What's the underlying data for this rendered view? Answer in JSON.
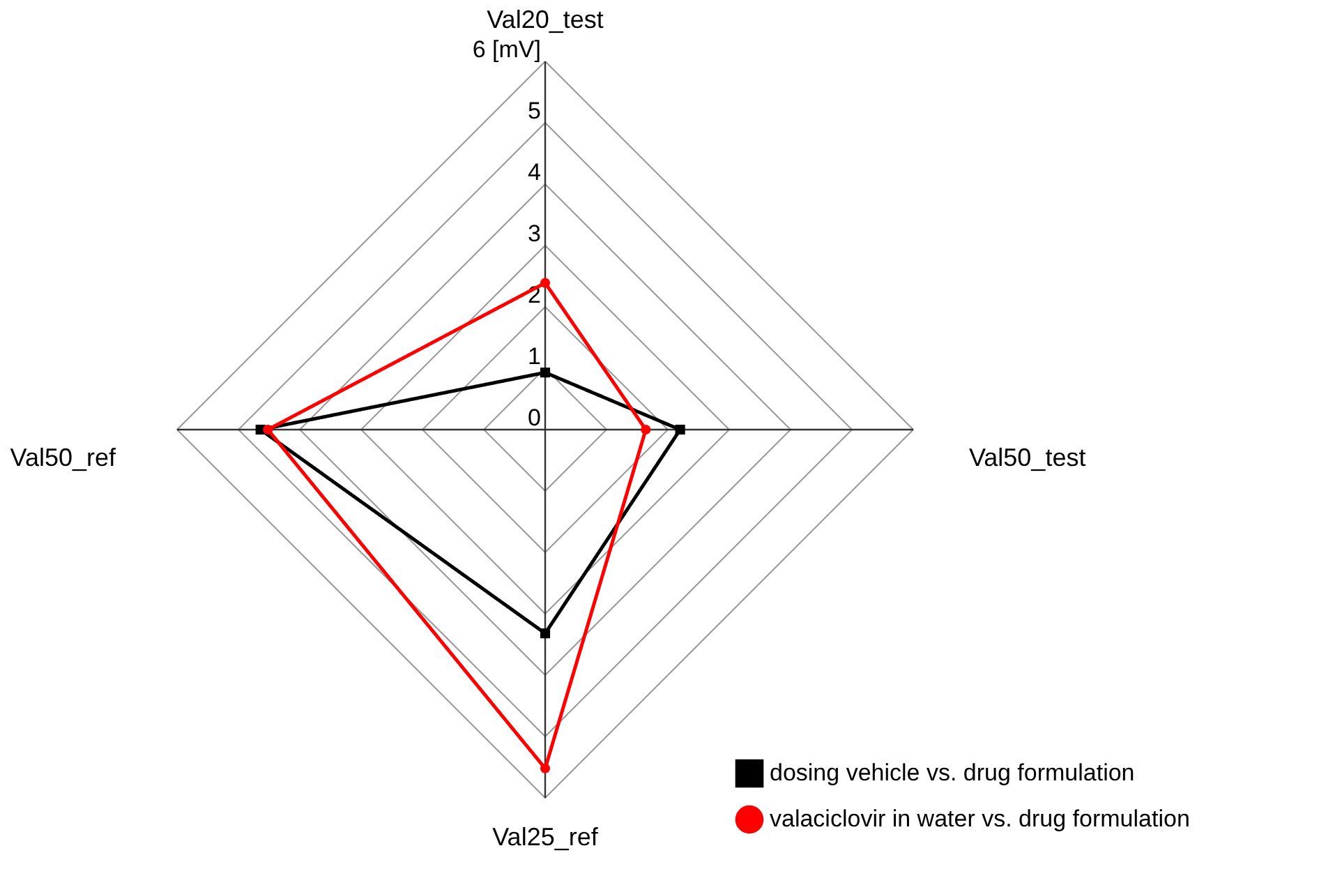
{
  "chart_data": {
    "type": "radar",
    "categories": [
      "Val20_test",
      "Val50_test",
      "Val25_ref",
      "Val50_ref"
    ],
    "ylim": [
      0,
      6
    ],
    "yticks": [
      0,
      1,
      2,
      3,
      4,
      5,
      {
        "value": 6,
        "label": "6 [mV]"
      }
    ],
    "grid": true,
    "legend": "bottom right",
    "series": [
      {
        "name": "dosing vehicle vs. drug formulation",
        "color": "#000000",
        "marker": "square",
        "values": [
          0.93,
          2.2,
          3.32,
          4.64
        ]
      },
      {
        "name": "valaciclovir in water vs. drug formulation",
        "color": "#ff0000",
        "marker": "circle",
        "values": [
          2.39,
          1.64,
          5.52,
          4.52
        ]
      }
    ]
  }
}
